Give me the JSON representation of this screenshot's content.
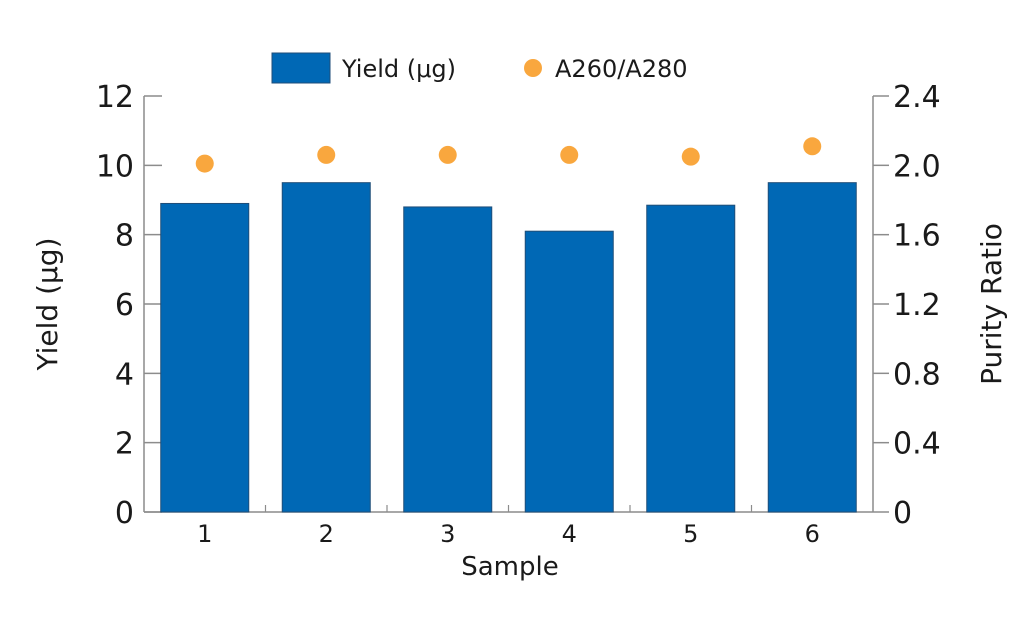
{
  "chart_data": {
    "type": "bar",
    "title": "",
    "xlabel": "Sample",
    "ylabel": "Yield (μg)",
    "y2label": "Purity Ratio",
    "categories": [
      "1",
      "2",
      "3",
      "4",
      "5",
      "6"
    ],
    "series": [
      {
        "name": "Yield (μg)",
        "type": "bar",
        "axis": "left",
        "color": "#0068B5",
        "values": [
          8.9,
          9.5,
          8.8,
          8.1,
          8.85,
          9.5
        ]
      },
      {
        "name": "A260/A280",
        "type": "scatter",
        "axis": "right",
        "color": "#F9A73E",
        "values": [
          2.01,
          2.06,
          2.06,
          2.06,
          2.05,
          2.11
        ]
      }
    ],
    "ylim": [
      0,
      12
    ],
    "y2lim": [
      0,
      2.4
    ],
    "yticks": [
      "0",
      "2",
      "4",
      "6",
      "8",
      "10",
      "12"
    ],
    "y2ticks": [
      "0",
      "0.4",
      "0.8",
      "1.2",
      "1.6",
      "2.0",
      "2.4"
    ],
    "grid": false,
    "legend_position": "top-center"
  },
  "legend": {
    "bar_label": "Yield (μg)",
    "dot_label": "A260/A280"
  },
  "axes": {
    "x_title": "Sample",
    "y_title": "Yield (μg)",
    "y2_title": "Purity Ratio"
  }
}
